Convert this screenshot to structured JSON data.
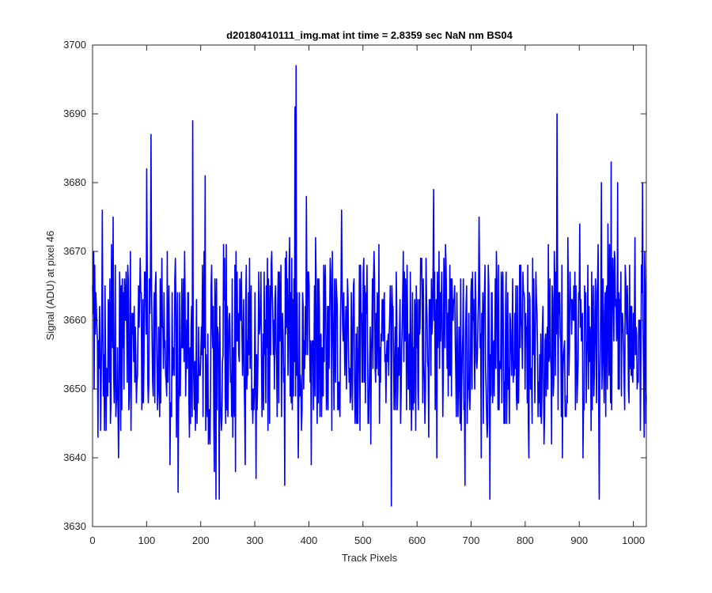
{
  "chart_data": {
    "type": "line",
    "title": "d20180410111_img.mat int time = 2.8359 sec  NaN nm BS04",
    "xlabel": "Track Pixels",
    "ylabel": "Signal (ADU) at pixel 46",
    "xlim": [
      0,
      1024
    ],
    "ylim": [
      3630,
      3700
    ],
    "xticks": [
      0,
      100,
      200,
      300,
      400,
      500,
      600,
      700,
      800,
      900,
      1000
    ],
    "yticks": [
      3630,
      3640,
      3650,
      3660,
      3670,
      3680,
      3690,
      3700
    ],
    "grid": false,
    "line_color": "#0000ff",
    "background": "#ffffff",
    "series": [
      {
        "n_points": 1024,
        "baseline_mean": 3657,
        "noise_range": [
          3644,
          3670
        ],
        "peaks": [
          [
            2,
            3670
          ],
          [
            10,
            3643
          ],
          [
            18,
            3676
          ],
          [
            28,
            3649
          ],
          [
            38,
            3675
          ],
          [
            44,
            3648
          ],
          [
            48,
            3640
          ],
          [
            55,
            3666
          ],
          [
            70,
            3670
          ],
          [
            88,
            3669
          ],
          [
            100,
            3682
          ],
          [
            108,
            3687
          ],
          [
            112,
            3649
          ],
          [
            125,
            3666
          ],
          [
            138,
            3670
          ],
          [
            143,
            3639
          ],
          [
            158,
            3635
          ],
          [
            170,
            3670
          ],
          [
            178,
            3648
          ],
          [
            185,
            3689
          ],
          [
            193,
            3645
          ],
          [
            208,
            3681
          ],
          [
            215,
            3644
          ],
          [
            220,
            3668
          ],
          [
            225,
            3638
          ],
          [
            228,
            3634
          ],
          [
            234,
            3634
          ],
          [
            242,
            3671
          ],
          [
            258,
            3666
          ],
          [
            264,
            3638
          ],
          [
            275,
            3667
          ],
          [
            282,
            3639
          ],
          [
            300,
            3664
          ],
          [
            302,
            3637
          ],
          [
            318,
            3655
          ],
          [
            330,
            3668
          ],
          [
            345,
            3667
          ],
          [
            355,
            3636
          ],
          [
            368,
            3669
          ],
          [
            374,
            3691
          ],
          [
            376,
            3697
          ],
          [
            380,
            3640
          ],
          [
            395,
            3678
          ],
          [
            404,
            3639
          ],
          [
            412,
            3672
          ],
          [
            420,
            3646
          ],
          [
            430,
            3668
          ],
          [
            450,
            3666
          ],
          [
            460,
            3676
          ],
          [
            478,
            3664
          ],
          [
            490,
            3645
          ],
          [
            500,
            3667
          ],
          [
            520,
            3670
          ],
          [
            536,
            3663
          ],
          [
            552,
            3633
          ],
          [
            560,
            3647
          ],
          [
            578,
            3666
          ],
          [
            600,
            3663
          ],
          [
            610,
            3648
          ],
          [
            630,
            3679
          ],
          [
            636,
            3640
          ],
          [
            650,
            3664
          ],
          [
            680,
            3666
          ],
          [
            688,
            3636
          ],
          [
            700,
            3666
          ],
          [
            714,
            3675
          ],
          [
            718,
            3640
          ],
          [
            734,
            3634
          ],
          [
            750,
            3668
          ],
          [
            762,
            3645
          ],
          [
            780,
            3661
          ],
          [
            804,
            3668
          ],
          [
            806,
            3640
          ],
          [
            819,
            3667
          ],
          [
            825,
            3648
          ],
          [
            842,
            3671
          ],
          [
            858,
            3690
          ],
          [
            868,
            3640
          ],
          [
            878,
            3672
          ],
          [
            900,
            3674
          ],
          [
            906,
            3640
          ],
          [
            922,
            3667
          ],
          [
            936,
            3634
          ],
          [
            940,
            3680
          ],
          [
            952,
            3674
          ],
          [
            958,
            3683
          ],
          [
            970,
            3680
          ],
          [
            984,
            3668
          ],
          [
            1002,
            3672
          ],
          [
            1010,
            3660
          ],
          [
            1016,
            3680
          ],
          [
            1020,
            3670
          ]
        ]
      }
    ]
  }
}
